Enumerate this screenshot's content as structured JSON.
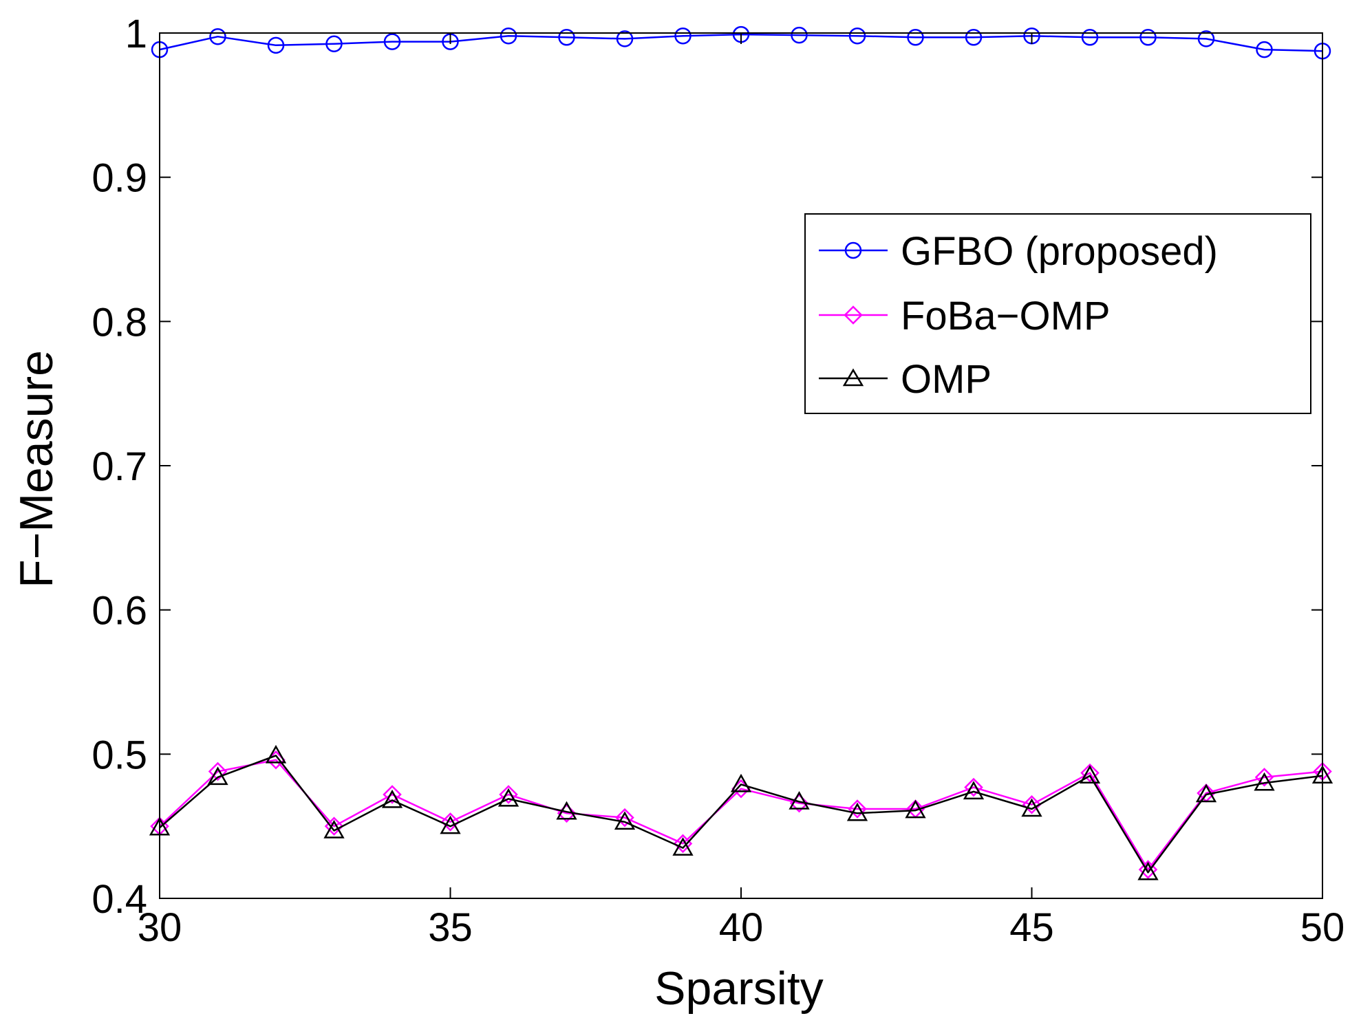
{
  "chart_data": {
    "type": "line",
    "title": "",
    "xlabel": "Sparsity",
    "ylabel": "F−Measure",
    "xlim": [
      30,
      50
    ],
    "ylim": [
      0.4,
      1
    ],
    "xticks": [
      30,
      35,
      40,
      45,
      50
    ],
    "yticks": [
      0.4,
      0.5,
      0.6,
      0.7,
      0.8,
      0.9,
      1
    ],
    "xtick_labels": [
      "30",
      "35",
      "40",
      "45",
      "50"
    ],
    "ytick_labels": [
      "0.4",
      "0.5",
      "0.6",
      "0.7",
      "0.8",
      "0.9",
      "1"
    ],
    "grid": false,
    "legend_position": "upper-right",
    "x": [
      30,
      31,
      32,
      33,
      34,
      35,
      36,
      37,
      38,
      39,
      40,
      41,
      42,
      43,
      44,
      45,
      46,
      47,
      48,
      49,
      50
    ],
    "series": [
      {
        "name": "GFBO (proposed)",
        "color": "#0000ff",
        "marker": "circle",
        "values": [
          0.9885,
          0.9975,
          0.9915,
          0.9925,
          0.994,
          0.994,
          0.998,
          0.997,
          0.996,
          0.998,
          0.999,
          0.9985,
          0.998,
          0.997,
          0.997,
          0.998,
          0.997,
          0.997,
          0.996,
          0.9885,
          0.9875
        ]
      },
      {
        "name": "FoBa−OMP",
        "color": "#ff00ff",
        "marker": "diamond",
        "values": [
          0.45,
          0.488,
          0.496,
          0.45,
          0.472,
          0.453,
          0.472,
          0.459,
          0.456,
          0.438,
          0.476,
          0.466,
          0.462,
          0.462,
          0.477,
          0.465,
          0.487,
          0.42,
          0.473,
          0.484,
          0.488
        ]
      },
      {
        "name": "OMP",
        "color": "#000000",
        "marker": "triangle",
        "values": [
          0.449,
          0.484,
          0.499,
          0.447,
          0.468,
          0.45,
          0.469,
          0.46,
          0.453,
          0.435,
          0.479,
          0.467,
          0.459,
          0.461,
          0.474,
          0.462,
          0.485,
          0.418,
          0.472,
          0.48,
          0.485
        ]
      }
    ]
  }
}
